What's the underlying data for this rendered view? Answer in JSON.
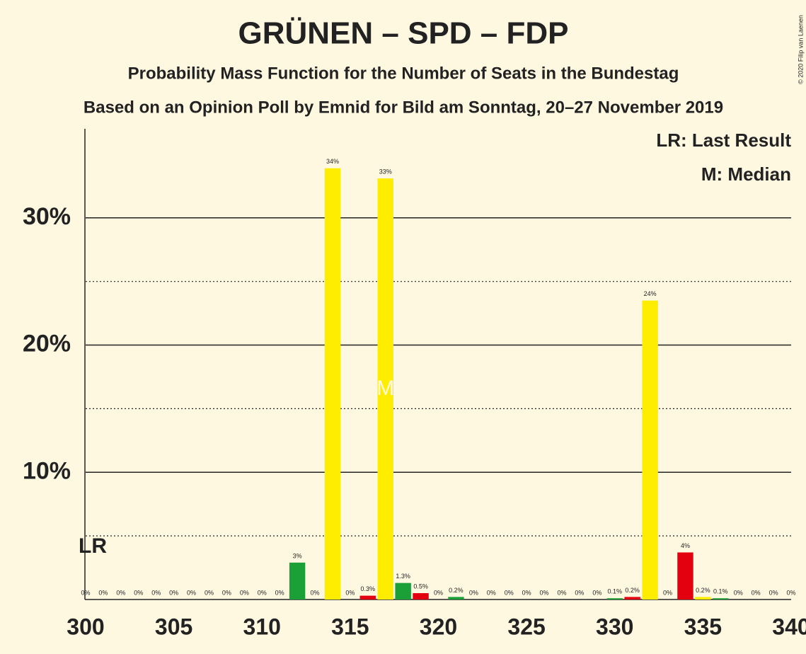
{
  "chart_data": {
    "type": "bar",
    "title": "GRÜNEN – SPD – FDP",
    "subtitle": "Probability Mass Function for the Number of Seats in the Bundestag",
    "subtitle2": "Based on an Opinion Poll by Emnid for Bild am Sonntag, 20–27 November 2019",
    "copyright": "© 2020 Filip van Laenen",
    "legend": [
      "LR: Last Result",
      "M: Median"
    ],
    "last_result": 300,
    "last_result_label": "LR",
    "median": 317,
    "median_label": "M",
    "x": [
      300,
      301,
      302,
      303,
      304,
      305,
      306,
      307,
      308,
      309,
      310,
      311,
      312,
      313,
      314,
      315,
      316,
      317,
      318,
      319,
      320,
      321,
      322,
      323,
      324,
      325,
      326,
      327,
      328,
      329,
      330,
      331,
      332,
      333,
      334,
      335,
      336,
      337,
      338,
      339,
      340
    ],
    "values": [
      0,
      0,
      0,
      0,
      0,
      0,
      0,
      0,
      0,
      0,
      0,
      0,
      2.9,
      0,
      33.9,
      0,
      0.3,
      33.1,
      1.3,
      0.5,
      0,
      0.2,
      0,
      0,
      0,
      0,
      0,
      0,
      0,
      0,
      0.1,
      0.2,
      23.5,
      0,
      3.7,
      0.2,
      0.1,
      0,
      0,
      0,
      0
    ],
    "value_labels": [
      "0%",
      "0%",
      "0%",
      "0%",
      "0%",
      "0%",
      "0%",
      "0%",
      "0%",
      "0%",
      "0%",
      "0%",
      "3%",
      "0%",
      "34%",
      "0%",
      "0.3%",
      "33%",
      "1.3%",
      "0.5%",
      "0%",
      "0.2%",
      "0%",
      "0%",
      "0%",
      "0%",
      "0%",
      "0%",
      "0%",
      "0%",
      "0.1%",
      "0.2%",
      "24%",
      "0%",
      "4%",
      "0.2%",
      "0.1%",
      "0%",
      "0%",
      "0%",
      "0%"
    ],
    "colors": [
      "#ffed00",
      "#e3000f",
      "#1aa037",
      "#ffed00",
      "#e3000f",
      "#1aa037",
      "#ffed00",
      "#e3000f",
      "#1aa037",
      "#ffed00",
      "#e3000f",
      "#1aa037",
      "#1aa037",
      "#e3000f",
      "#ffed00",
      "#1aa037",
      "#e3000f",
      "#ffed00",
      "#1aa037",
      "#e3000f",
      "#ffed00",
      "#1aa037",
      "#e3000f",
      "#ffed00",
      "#1aa037",
      "#e3000f",
      "#ffed00",
      "#1aa037",
      "#e3000f",
      "#ffed00",
      "#1aa037",
      "#e3000f",
      "#ffed00",
      "#1aa037",
      "#e3000f",
      "#ffed00",
      "#1aa037",
      "#e3000f",
      "#ffed00",
      "#1aa037",
      "#e3000f"
    ],
    "xlim": [
      300,
      340
    ],
    "xticks": [
      300,
      305,
      310,
      315,
      320,
      325,
      330,
      335,
      340
    ],
    "ylim": [
      0,
      37
    ],
    "yticks": [
      {
        "value": 10,
        "label": "10%"
      },
      {
        "value": 20,
        "label": "20%"
      },
      {
        "value": 30,
        "label": "30%"
      }
    ],
    "yticks_minor": [
      5,
      15,
      25
    ],
    "grid": true
  }
}
